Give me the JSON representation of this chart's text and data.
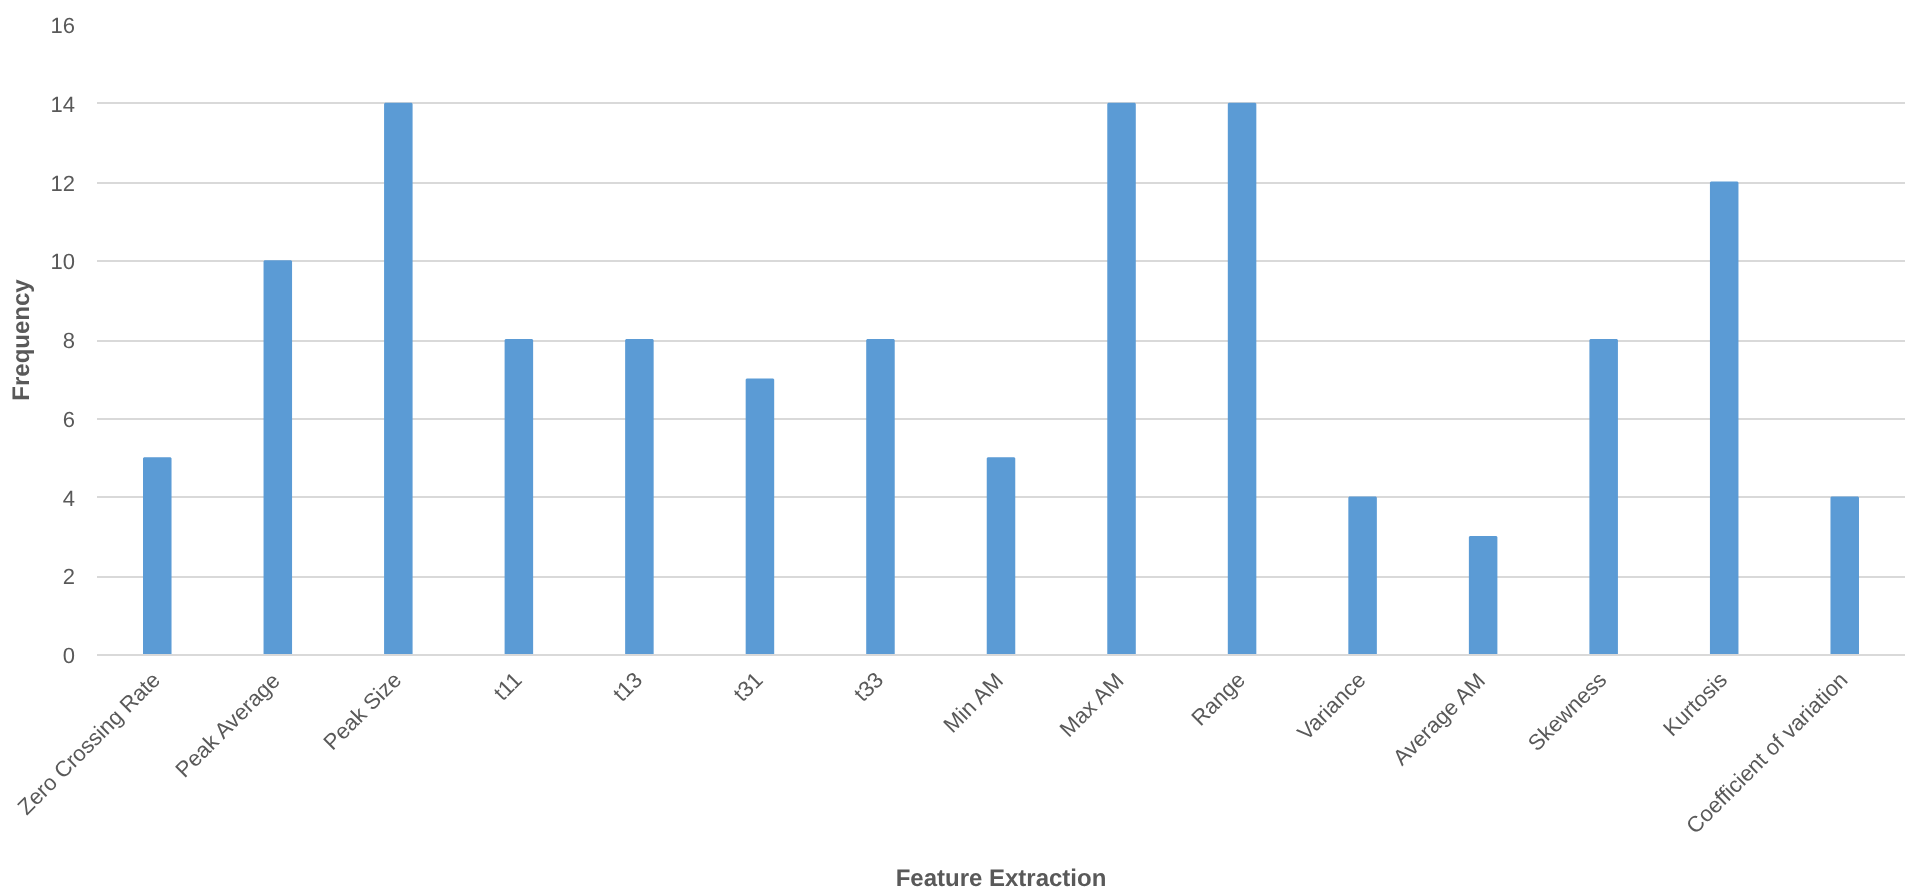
{
  "chart_data": {
    "type": "bar",
    "xlabel": "Feature Extraction",
    "ylabel": "Frequency",
    "categories": [
      "Zero Crossing Rate",
      "Peak Average",
      "Peak Size",
      "t11",
      "t13",
      "t31",
      "t33",
      "Min AM",
      "Max AM",
      "Range",
      "Variance",
      "Average AM",
      "Skewness",
      "Kurtosis",
      "Coefficient of variation"
    ],
    "values": [
      5,
      10,
      14,
      8,
      8,
      7,
      8,
      5,
      14,
      14,
      4,
      3,
      8,
      12,
      4
    ],
    "color": "#5b9bd5",
    "ylim": [
      0,
      16
    ],
    "yticks": [
      0,
      2,
      4,
      6,
      8,
      10,
      12,
      14,
      16
    ],
    "grid": "y"
  }
}
